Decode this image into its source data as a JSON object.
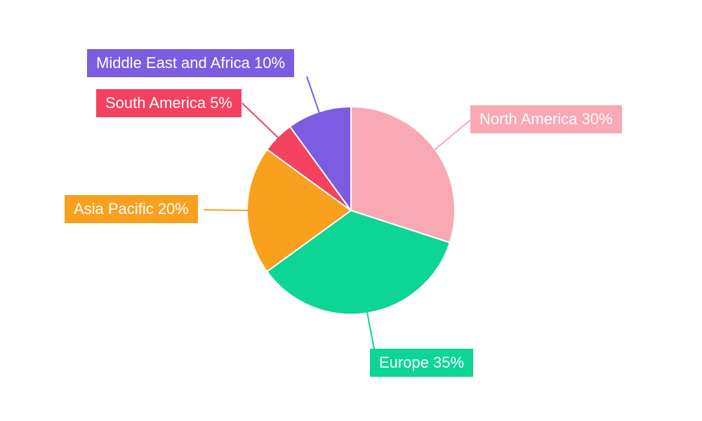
{
  "chart_data": {
    "type": "pie",
    "title": "",
    "categories": [
      "North America",
      "Europe",
      "Asia Pacific",
      "South America",
      "Middle East and Africa"
    ],
    "values": [
      30,
      35,
      20,
      5,
      10
    ],
    "unit": "%",
    "labels": [
      "North America 30%",
      "Europe 35%",
      "Asia Pacific 20%",
      "South America 5%",
      "Middle East and Africa 10%"
    ],
    "colors": [
      "#F9A8B4",
      "#0CD596",
      "#F9A11F",
      "#F4415F",
      "#7C5CE0"
    ],
    "start_angle_deg": 0,
    "direction": "clockwise",
    "legend": "none",
    "label_style": "external-colored-boxes-with-leader-lines",
    "label_text_color": "#FFFFFF",
    "slice_border_color": "#FFFFFF",
    "background": "#FFFFFF"
  }
}
